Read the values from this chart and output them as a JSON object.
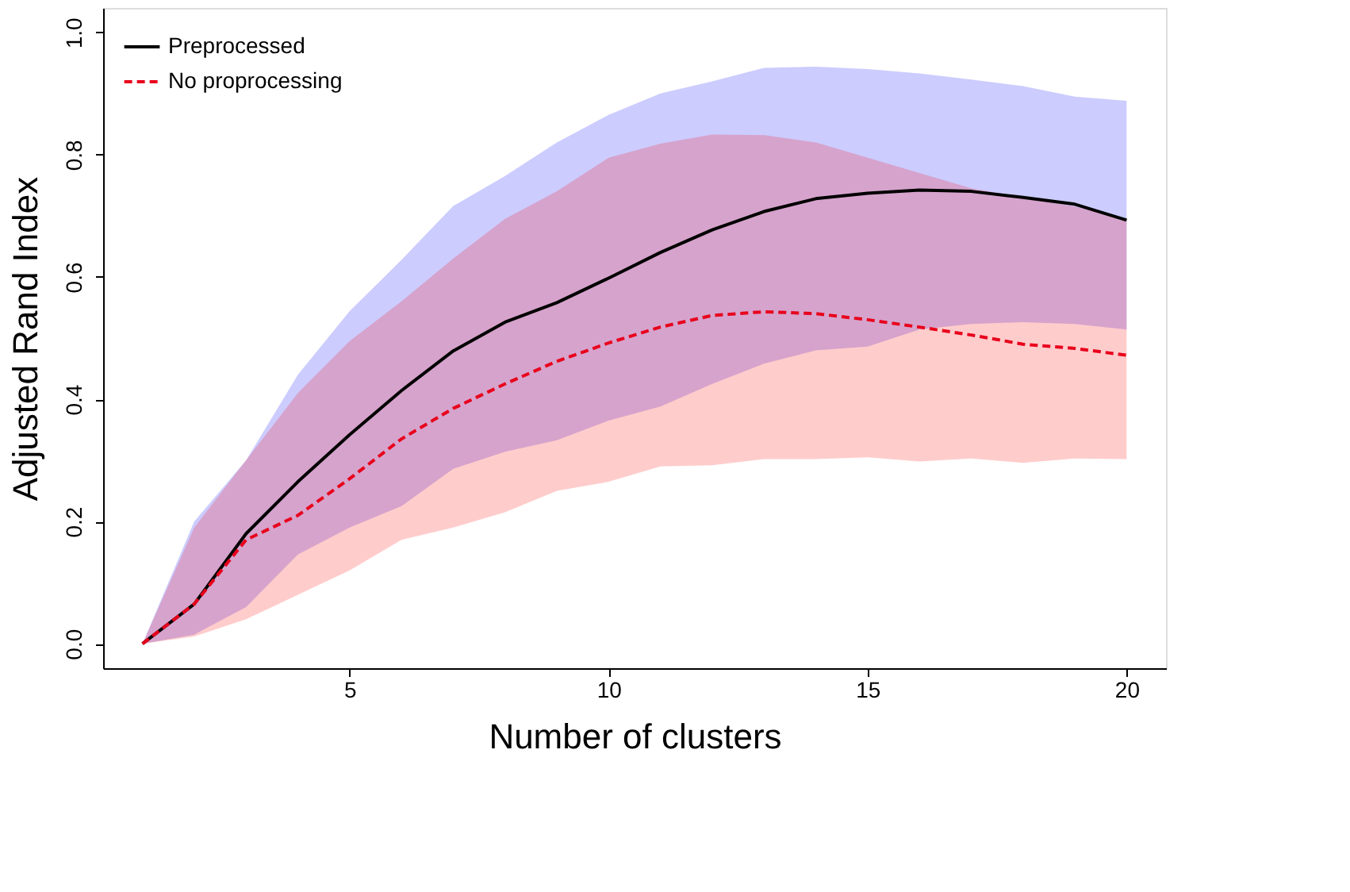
{
  "chart_data": {
    "type": "line",
    "xlabel": "Number of clusters",
    "ylabel": "Adjusted Rand Index",
    "x": [
      1,
      2,
      3,
      4,
      5,
      6,
      7,
      8,
      9,
      10,
      11,
      12,
      13,
      14,
      15,
      16,
      17,
      18,
      19,
      20
    ],
    "xlim": [
      0.24,
      20.76
    ],
    "xticks": [
      5,
      10,
      15,
      20
    ],
    "ylim": [
      -0.04,
      1.04
    ],
    "yticks": [
      {
        "value": 0,
        "label": "0.0"
      },
      0.2,
      0.4,
      0.6,
      0.8,
      {
        "value": 1,
        "label": "1.0"
      }
    ],
    "grid": false,
    "legend": "top left",
    "marker": "none",
    "series": [
      {
        "name": "Preprocessed",
        "color": "#000000",
        "line_style": "solid",
        "values": [
          0,
          0.065,
          0.18,
          0.265,
          0.342,
          0.414,
          0.479,
          0.526,
          0.558,
          0.598,
          0.64,
          0.677,
          0.707,
          0.728,
          0.737,
          0.742,
          0.74,
          0.73,
          0.719,
          0.693
        ],
        "lower": [
          0,
          0.015,
          0.06,
          0.146,
          0.19,
          0.225,
          0.286,
          0.314,
          0.333,
          0.365,
          0.388,
          0.425,
          0.458,
          0.48,
          0.486,
          0.514,
          0.523,
          0.526,
          0.523,
          0.514
        ],
        "upper": [
          0,
          0.2,
          0.3,
          0.44,
          0.544,
          0.628,
          0.716,
          0.765,
          0.82,
          0.865,
          0.9,
          0.92,
          0.942,
          0.944,
          0.94,
          0.933,
          0.923,
          0.912,
          0.895,
          0.888
        ]
      },
      {
        "name": "No proprocessing",
        "color": "#e8001c",
        "line_style": "dashed",
        "values": [
          0,
          0.065,
          0.17,
          0.21,
          0.27,
          0.335,
          0.385,
          0.425,
          0.462,
          0.492,
          0.518,
          0.537,
          0.543,
          0.54,
          0.53,
          0.518,
          0.505,
          0.49,
          0.483,
          0.472
        ],
        "lower": [
          0,
          0.012,
          0.04,
          0.08,
          0.12,
          0.17,
          0.19,
          0.215,
          0.25,
          0.265,
          0.29,
          0.292,
          0.302,
          0.302,
          0.305,
          0.298,
          0.303,
          0.296,
          0.303,
          0.302
        ],
        "upper": [
          0,
          0.19,
          0.3,
          0.41,
          0.495,
          0.56,
          0.63,
          0.695,
          0.74,
          0.795,
          0.818,
          0.833,
          0.832,
          0.82,
          0.795,
          0.77,
          0.745,
          0.73,
          0.715,
          0.695
        ]
      }
    ]
  }
}
